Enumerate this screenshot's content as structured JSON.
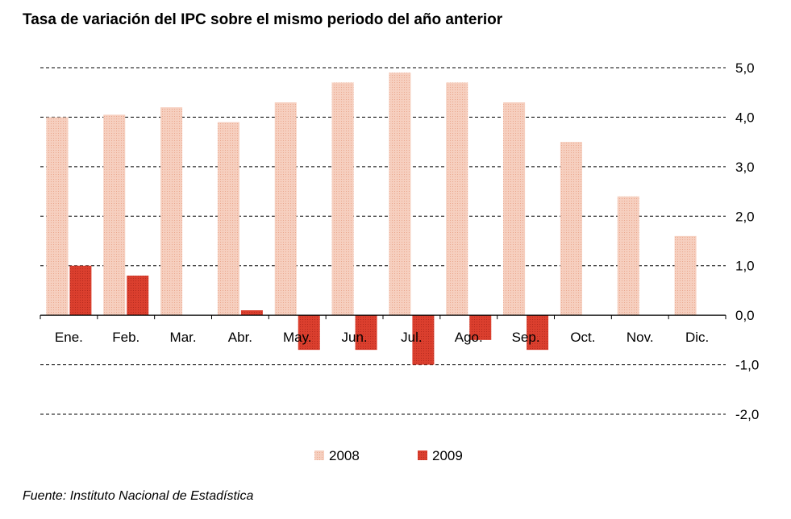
{
  "title": "Tasa de variación del IPC sobre el mismo periodo del año anterior",
  "source": "Fuente: Instituto Nacional de Estadística",
  "colors": {
    "s2008": "#f3c3b0",
    "s2009": "#d93b2c",
    "grid": "#000000"
  },
  "chart_data": {
    "type": "bar",
    "title": "Tasa de variación del IPC sobre el mismo periodo del año anterior",
    "categories": [
      "Ene.",
      "Feb.",
      "Mar.",
      "Abr.",
      "May.",
      "Jun.",
      "Jul.",
      "Ago.",
      "Sep.",
      "Oct.",
      "Nov.",
      "Dic."
    ],
    "series": [
      {
        "name": "2008",
        "values": [
          4.0,
          4.05,
          4.2,
          3.9,
          4.3,
          4.7,
          4.9,
          4.7,
          4.3,
          3.5,
          2.4,
          1.6
        ]
      },
      {
        "name": "2009",
        "values": [
          1.0,
          0.8,
          null,
          0.1,
          -0.7,
          -0.7,
          -1.0,
          -0.5,
          -0.7,
          null,
          null,
          null
        ]
      }
    ],
    "ylim": [
      -2.0,
      5.0
    ],
    "yticks": [
      "5,0",
      "4,0",
      "3,0",
      "2,0",
      "1,0",
      "0,0",
      "-1,0",
      "-2,0"
    ],
    "ytick_values": [
      5,
      4,
      3,
      2,
      1,
      0,
      -1,
      -2
    ],
    "y_axis_position": "right",
    "grid": true,
    "legend_position": "bottom-center"
  }
}
